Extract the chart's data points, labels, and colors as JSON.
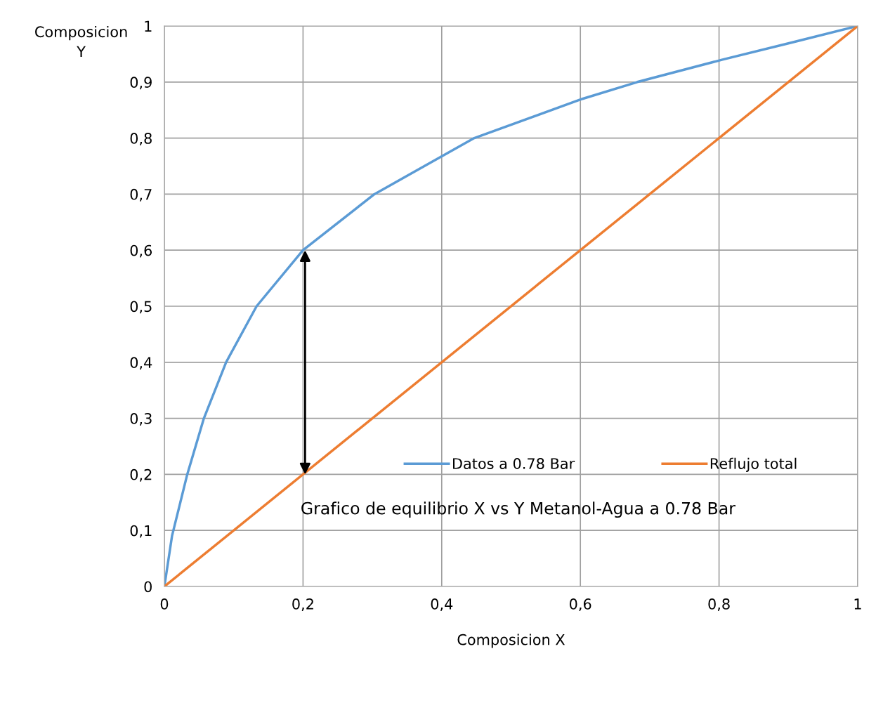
{
  "chart_data": {
    "type": "line",
    "title": "Grafico de equilibrio X vs Y Metanol-Agua a 0.78 Bar",
    "xlabel": "Composicion X",
    "ylabel": "Composicion\nY",
    "xlim": [
      0,
      1
    ],
    "ylim": [
      0,
      1
    ],
    "xticks": [
      0,
      {
        "value": 0.2,
        "label": "0,2"
      },
      {
        "value": 0.4,
        "label": "0,4"
      },
      {
        "value": 0.6,
        "label": "0,6"
      },
      {
        "value": 0.8,
        "label": "0,8"
      },
      1
    ],
    "yticks": [
      0,
      {
        "value": 0.1,
        "label": "0,1"
      },
      {
        "value": 0.2,
        "label": "0,2"
      },
      {
        "value": 0.3,
        "label": "0,3"
      },
      {
        "value": 0.4,
        "label": "0,4"
      },
      {
        "value": 0.5,
        "label": "0,5"
      },
      {
        "value": 0.6,
        "label": "0,6"
      },
      {
        "value": 0.7,
        "label": "0,7"
      },
      {
        "value": 0.8,
        "label": "0,8"
      },
      {
        "value": 0.9,
        "label": "0,9"
      },
      1
    ],
    "grid": true,
    "legend": "bottom",
    "marker": "none",
    "line_style": "solid",
    "series": [
      {
        "name": "Datos a 0.78 Bar",
        "color": "#5b9bd5",
        "x": [
          0,
          0.011,
          0.033,
          0.057,
          0.089,
          0.133,
          0.2,
          0.303,
          0.447,
          0.603,
          0.682,
          0.805,
          0.903,
          1
        ],
        "values": [
          0,
          0.09,
          0.2,
          0.3,
          0.4,
          0.5,
          0.6,
          0.7,
          0.8,
          0.87,
          0.9,
          0.94,
          0.97,
          1
        ]
      },
      {
        "name": "Reflujo total",
        "color": "#ed7d31",
        "x": [
          0,
          1
        ],
        "values": [
          0,
          1
        ]
      }
    ]
  }
}
